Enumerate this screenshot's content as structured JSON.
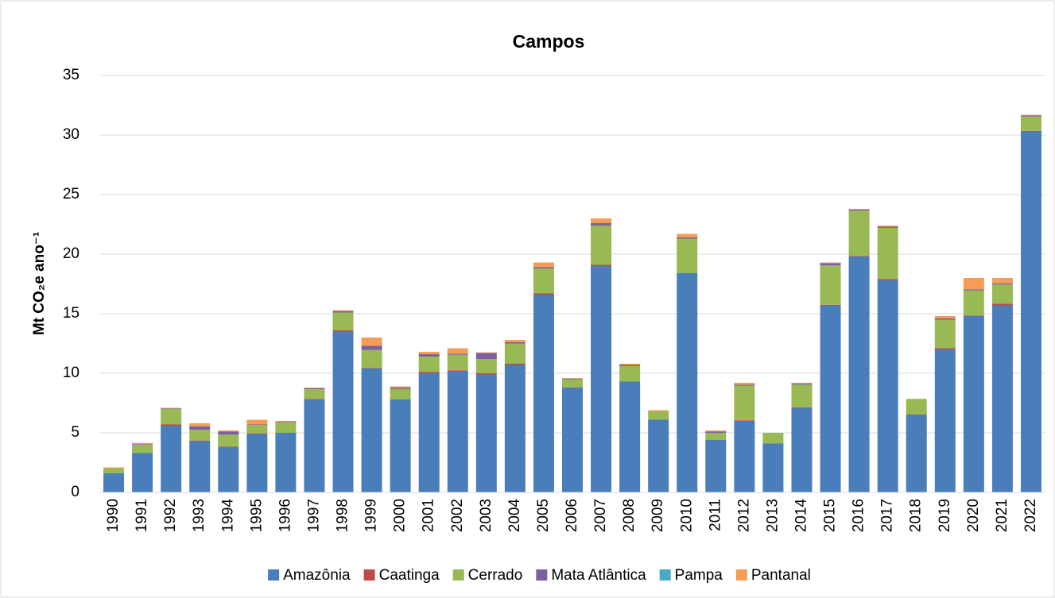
{
  "chart_data": {
    "type": "stacked_bar",
    "title": "Campos",
    "ylabel": "Mt CO₂e ano⁻¹",
    "categories": [
      "1990",
      "1991",
      "1992",
      "1993",
      "1994",
      "1995",
      "1996",
      "1997",
      "1998",
      "1999",
      "2000",
      "2001",
      "2002",
      "2003",
      "2004",
      "2005",
      "2006",
      "2007",
      "2008",
      "2009",
      "2010",
      "2011",
      "2012",
      "2013",
      "2014",
      "2015",
      "2016",
      "2017",
      "2018",
      "2019",
      "2020",
      "2021",
      "2022"
    ],
    "series": [
      {
        "name": "Amazônia",
        "color": "#4a7ebb",
        "values": [
          1.6,
          3.3,
          5.6,
          4.3,
          3.8,
          4.9,
          5.0,
          7.8,
          13.5,
          10.4,
          7.8,
          10.0,
          10.2,
          9.9,
          10.7,
          16.6,
          8.8,
          19.0,
          9.3,
          6.1,
          18.4,
          4.4,
          6.0,
          4.1,
          7.1,
          15.7,
          19.8,
          17.8,
          6.5,
          12.0,
          14.8,
          15.7,
          30.3
        ]
      },
      {
        "name": "Caatinga",
        "color": "#be4b48",
        "values": [
          0,
          0,
          0.1,
          0.05,
          0.05,
          0.05,
          0,
          0.05,
          0.1,
          0.05,
          0,
          0.1,
          0.05,
          0.1,
          0.1,
          0.1,
          0,
          0.1,
          0,
          0,
          0,
          0,
          0.05,
          0,
          0.05,
          0.05,
          0.05,
          0.1,
          0.05,
          0.1,
          0.05,
          0.15,
          0.05
        ]
      },
      {
        "name": "Cerrado",
        "color": "#98b954",
        "values": [
          0.4,
          0.7,
          1.3,
          0.9,
          1.0,
          0.7,
          0.85,
          0.8,
          1.5,
          1.5,
          0.9,
          1.3,
          1.3,
          1.2,
          1.7,
          2.1,
          0.7,
          3.3,
          1.3,
          0.7,
          2.9,
          0.6,
          2.9,
          0.9,
          1.9,
          3.3,
          3.8,
          4.3,
          1.3,
          2.4,
          2.1,
          1.6,
          1.2
        ]
      },
      {
        "name": "Mata Atlântica",
        "color": "#7d60a0",
        "values": [
          0,
          0.05,
          0.05,
          0.3,
          0.25,
          0.05,
          0.05,
          0.1,
          0.1,
          0.35,
          0.1,
          0.2,
          0.1,
          0.5,
          0.1,
          0.1,
          0.05,
          0.2,
          0.1,
          0,
          0.1,
          0.1,
          0.1,
          0,
          0.1,
          0.2,
          0.1,
          0.1,
          0,
          0.1,
          0.1,
          0.1,
          0.1
        ]
      },
      {
        "name": "Pampa",
        "color": "#46aac4",
        "values": [
          0,
          0,
          0,
          0,
          0,
          0,
          0,
          0,
          0,
          0,
          0,
          0,
          0,
          0,
          0,
          0,
          0,
          0,
          0,
          0,
          0,
          0,
          0,
          0,
          0,
          0,
          0,
          0,
          0,
          0,
          0,
          0,
          0
        ]
      },
      {
        "name": "Pantanal",
        "color": "#f59d56",
        "values": [
          0.1,
          0.1,
          0.05,
          0.25,
          0.1,
          0.4,
          0.1,
          0.05,
          0.1,
          0.7,
          0.1,
          0.2,
          0.45,
          0.05,
          0.2,
          0.4,
          0.05,
          0.4,
          0.1,
          0.1,
          0.3,
          0.1,
          0.15,
          0,
          0.05,
          0.05,
          0.05,
          0.1,
          0,
          0.2,
          0.95,
          0.45,
          0.05
        ]
      }
    ],
    "ylim": [
      0,
      35
    ],
    "yticks": [
      0,
      5,
      10,
      15,
      20,
      25,
      30,
      35
    ],
    "grid": true
  }
}
